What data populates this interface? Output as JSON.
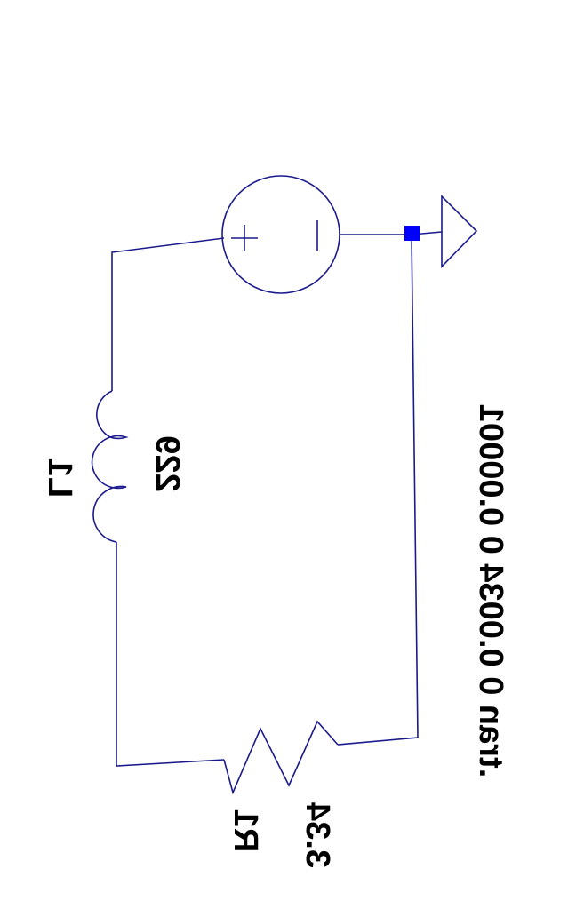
{
  "schematic": {
    "wire_color": "#1a1a8c",
    "junction_color": "#0000ff",
    "text_color": "#000000",
    "inductor": {
      "name": "L1",
      "value": "229"
    },
    "resistor": {
      "name": "R1",
      "value": "3.34"
    },
    "source": {
      "plus_symbol": "+",
      "minus_symbol": "|"
    },
    "ground_icon": "ground-triangle-icon",
    "directive": ".tran 0 0.0034 0 0.00001"
  }
}
